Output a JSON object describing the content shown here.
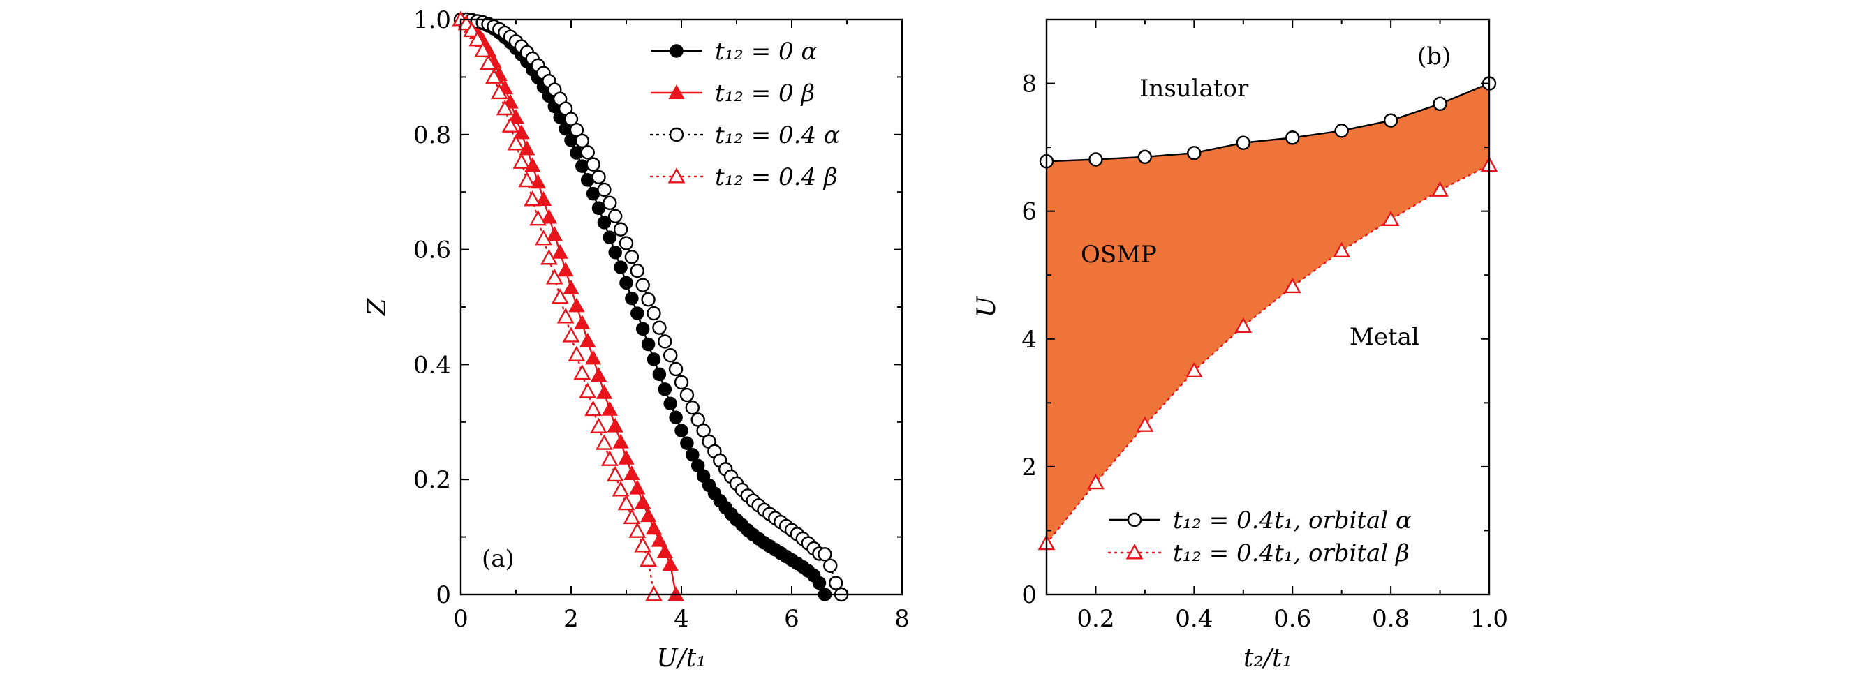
{
  "chart_data": [
    {
      "type": "scatter",
      "panel": "(a)",
      "xlabel": "U/t₁",
      "ylabel": "Z",
      "xlim": [
        0,
        8
      ],
      "ylim": [
        0,
        1.0
      ],
      "xticks": [
        "0",
        "2",
        "4",
        "6",
        "8"
      ],
      "yticks": [
        "0",
        "0.2",
        "0.4",
        "0.6",
        "0.8",
        "1.0"
      ],
      "grid": false,
      "legend_position": "top-right",
      "series": [
        {
          "name": "t₁₂ = 0 α",
          "color": "#000000",
          "marker": "circle-filled",
          "line": "solid",
          "x": [
            0,
            0.1,
            0.2,
            0.3,
            0.4,
            0.5,
            0.6,
            0.7,
            0.8,
            0.9,
            1.0,
            1.1,
            1.2,
            1.3,
            1.4,
            1.5,
            1.6,
            1.7,
            1.8,
            1.9,
            2.0,
            2.1,
            2.2,
            2.3,
            2.4,
            2.5,
            2.6,
            2.7,
            2.8,
            2.9,
            3.0,
            3.1,
            3.2,
            3.3,
            3.4,
            3.5,
            3.6,
            3.7,
            3.8,
            3.9,
            4.0,
            4.1,
            4.2,
            4.3,
            4.4,
            4.5,
            4.6,
            4.7,
            4.8,
            4.9,
            5.0,
            5.1,
            5.2,
            5.3,
            5.4,
            5.5,
            5.6,
            5.7,
            5.8,
            5.9,
            6.0,
            6.1,
            6.2,
            6.3,
            6.4,
            6.5,
            6.6
          ],
          "y": [
            1.0,
            1.0,
            0.998,
            0.996,
            0.993,
            0.989,
            0.984,
            0.977,
            0.969,
            0.96,
            0.95,
            0.939,
            0.927,
            0.913,
            0.899,
            0.883,
            0.867,
            0.849,
            0.83,
            0.81,
            0.79,
            0.768,
            0.745,
            0.721,
            0.697,
            0.672,
            0.647,
            0.621,
            0.595,
            0.569,
            0.542,
            0.515,
            0.489,
            0.462,
            0.435,
            0.409,
            0.383,
            0.357,
            0.332,
            0.308,
            0.285,
            0.263,
            0.243,
            0.224,
            0.206,
            0.19,
            0.176,
            0.163,
            0.151,
            0.14,
            0.13,
            0.121,
            0.112,
            0.104,
            0.097,
            0.09,
            0.084,
            0.078,
            0.072,
            0.066,
            0.06,
            0.054,
            0.048,
            0.041,
            0.033,
            0.02,
            0.0
          ]
        },
        {
          "name": "t₁₂ = 0 β",
          "color": "#e8141b",
          "marker": "triangle-filled",
          "line": "solid",
          "x": [
            0,
            0.1,
            0.2,
            0.3,
            0.4,
            0.5,
            0.6,
            0.7,
            0.8,
            0.9,
            1.0,
            1.1,
            1.2,
            1.3,
            1.4,
            1.5,
            1.6,
            1.7,
            1.8,
            1.9,
            2.0,
            2.1,
            2.2,
            2.3,
            2.4,
            2.5,
            2.6,
            2.7,
            2.8,
            2.9,
            3.0,
            3.1,
            3.2,
            3.3,
            3.4,
            3.5,
            3.6,
            3.7,
            3.8,
            3.9
          ],
          "y": [
            1.0,
            0.996,
            0.988,
            0.977,
            0.963,
            0.946,
            0.926,
            0.904,
            0.881,
            0.856,
            0.83,
            0.803,
            0.775,
            0.746,
            0.717,
            0.687,
            0.656,
            0.626,
            0.595,
            0.564,
            0.533,
            0.502,
            0.472,
            0.441,
            0.411,
            0.381,
            0.351,
            0.322,
            0.293,
            0.265,
            0.237,
            0.21,
            0.185,
            0.16,
            0.137,
            0.115,
            0.094,
            0.074,
            0.052,
            0.0
          ]
        },
        {
          "name": "t₁₂ = 0.4 α",
          "color": "#000000",
          "marker": "circle-open",
          "line": "dotted",
          "x": [
            0,
            0.1,
            0.2,
            0.3,
            0.4,
            0.5,
            0.6,
            0.7,
            0.8,
            0.9,
            1.0,
            1.1,
            1.2,
            1.3,
            1.4,
            1.5,
            1.6,
            1.7,
            1.8,
            1.9,
            2.0,
            2.1,
            2.2,
            2.3,
            2.4,
            2.5,
            2.6,
            2.7,
            2.8,
            2.9,
            3.0,
            3.1,
            3.2,
            3.3,
            3.4,
            3.5,
            3.6,
            3.7,
            3.8,
            3.9,
            4.0,
            4.1,
            4.2,
            4.3,
            4.4,
            4.5,
            4.6,
            4.7,
            4.8,
            4.9,
            5.0,
            5.1,
            5.2,
            5.3,
            5.4,
            5.5,
            5.6,
            5.7,
            5.8,
            5.9,
            6.0,
            6.1,
            6.2,
            6.3,
            6.4,
            6.5,
            6.6,
            6.7,
            6.8,
            6.9
          ],
          "y": [
            1.0,
            1.0,
            0.999,
            0.997,
            0.995,
            0.992,
            0.988,
            0.983,
            0.977,
            0.97,
            0.962,
            0.953,
            0.943,
            0.932,
            0.92,
            0.907,
            0.893,
            0.878,
            0.862,
            0.845,
            0.827,
            0.808,
            0.789,
            0.769,
            0.748,
            0.726,
            0.704,
            0.681,
            0.658,
            0.635,
            0.611,
            0.587,
            0.563,
            0.538,
            0.513,
            0.489,
            0.464,
            0.44,
            0.416,
            0.392,
            0.369,
            0.347,
            0.325,
            0.304,
            0.285,
            0.266,
            0.249,
            0.233,
            0.218,
            0.205,
            0.193,
            0.182,
            0.172,
            0.163,
            0.155,
            0.147,
            0.14,
            0.133,
            0.126,
            0.119,
            0.112,
            0.105,
            0.097,
            0.089,
            0.08,
            0.071,
            0.07,
            0.05,
            0.02,
            0.0
          ]
        },
        {
          "name": "t₁₂ = 0.4 β",
          "color": "#e8141b",
          "marker": "triangle-open",
          "line": "dotted",
          "x": [
            0,
            0.1,
            0.2,
            0.3,
            0.4,
            0.5,
            0.6,
            0.7,
            0.8,
            0.9,
            1.0,
            1.1,
            1.2,
            1.3,
            1.4,
            1.5,
            1.6,
            1.7,
            1.8,
            1.9,
            2.0,
            2.1,
            2.2,
            2.3,
            2.4,
            2.5,
            2.6,
            2.7,
            2.8,
            2.9,
            3.0,
            3.1,
            3.2,
            3.3,
            3.4,
            3.5
          ],
          "y": [
            1.0,
            0.993,
            0.981,
            0.965,
            0.946,
            0.924,
            0.9,
            0.873,
            0.845,
            0.815,
            0.784,
            0.752,
            0.72,
            0.687,
            0.653,
            0.619,
            0.585,
            0.551,
            0.517,
            0.483,
            0.45,
            0.417,
            0.385,
            0.353,
            0.322,
            0.292,
            0.263,
            0.235,
            0.208,
            0.182,
            0.158,
            0.134,
            0.11,
            0.085,
            0.06,
            0.0
          ]
        }
      ]
    },
    {
      "type": "area",
      "panel": "(b)",
      "xlabel": "t₂/t₁",
      "ylabel": "U",
      "xlim": [
        0.1,
        1.0
      ],
      "ylim": [
        0,
        9
      ],
      "xticks": [
        "0.2",
        "0.4",
        "0.6",
        "0.8",
        "1.0"
      ],
      "yticks": [
        "0",
        "2",
        "4",
        "6",
        "8"
      ],
      "grid": false,
      "legend_position": "bottom-right",
      "fill_color": "#ee7439",
      "regions": [
        "Insulator",
        "OSMP",
        "Metal"
      ],
      "series": [
        {
          "name": "t₁₂ = 0.4t₁, orbital α",
          "color": "#000000",
          "marker": "circle-open",
          "line": "solid",
          "x": [
            0.1,
            0.2,
            0.3,
            0.4,
            0.5,
            0.6,
            0.7,
            0.8,
            0.9,
            1.0
          ],
          "y": [
            6.78,
            6.81,
            6.85,
            6.91,
            7.07,
            7.15,
            7.26,
            7.42,
            7.68,
            8.0
          ]
        },
        {
          "name": "t₁₂ = 0.4t₁, orbital β",
          "color": "#e8141b",
          "marker": "triangle-open",
          "line": "dotted",
          "x": [
            0.1,
            0.2,
            0.3,
            0.4,
            0.5,
            0.6,
            0.7,
            0.8,
            0.9,
            1.0
          ],
          "y": [
            0.8,
            1.75,
            2.65,
            3.5,
            4.2,
            4.82,
            5.38,
            5.87,
            6.33,
            6.72
          ]
        }
      ]
    }
  ]
}
